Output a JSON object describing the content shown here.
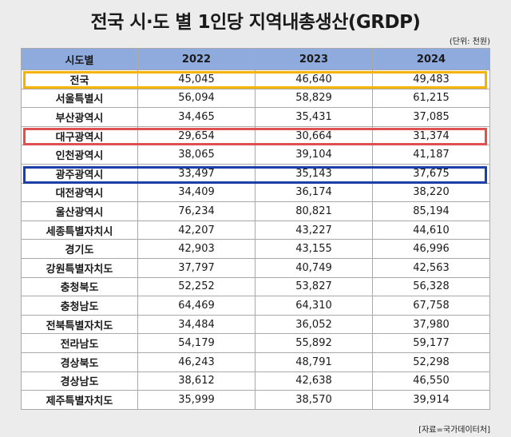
{
  "title": "전국 시·도 별 1인당 지역내총생산(GRDP)",
  "unit_note": "(단위: 천원)",
  "source_note": "[자료=국가데이터처]",
  "highlight_colors": {
    "orange": "#f5b300",
    "red": "#e05050",
    "blue": "#1f3fa8"
  },
  "chart_data": {
    "type": "table",
    "columns": [
      "시도별",
      "2022",
      "2023",
      "2024"
    ],
    "rows": [
      {
        "region": "전국",
        "values": [
          "45,045",
          "46,640",
          "49,483"
        ]
      },
      {
        "region": "서울특별시",
        "values": [
          "56,094",
          "58,829",
          "61,215"
        ]
      },
      {
        "region": "부산광역시",
        "values": [
          "34,465",
          "35,431",
          "37,085"
        ]
      },
      {
        "region": "대구광역시",
        "values": [
          "29,654",
          "30,664",
          "31,374"
        ]
      },
      {
        "region": "인천광역시",
        "values": [
          "38,065",
          "39,104",
          "41,187"
        ]
      },
      {
        "region": "광주광역시",
        "values": [
          "33,497",
          "35,143",
          "37,675"
        ]
      },
      {
        "region": "대전광역시",
        "values": [
          "34,409",
          "36,174",
          "38,220"
        ]
      },
      {
        "region": "울산광역시",
        "values": [
          "76,234",
          "80,821",
          "85,194"
        ]
      },
      {
        "region": "세종특별자치시",
        "values": [
          "42,207",
          "43,227",
          "44,610"
        ]
      },
      {
        "region": "경기도",
        "values": [
          "42,903",
          "43,155",
          "46,996"
        ]
      },
      {
        "region": "강원특별자치도",
        "values": [
          "37,797",
          "40,749",
          "42,563"
        ]
      },
      {
        "region": "충청북도",
        "values": [
          "52,252",
          "53,827",
          "56,328"
        ]
      },
      {
        "region": "충청남도",
        "values": [
          "64,469",
          "64,310",
          "67,758"
        ]
      },
      {
        "region": "전북특별자치도",
        "values": [
          "34,484",
          "36,052",
          "37,980"
        ]
      },
      {
        "region": "전라남도",
        "values": [
          "54,179",
          "55,892",
          "59,177"
        ]
      },
      {
        "region": "경상북도",
        "values": [
          "46,243",
          "48,791",
          "52,298"
        ]
      },
      {
        "region": "경상남도",
        "values": [
          "38,612",
          "42,638",
          "46,550"
        ]
      },
      {
        "region": "제주특별자치도",
        "values": [
          "35,999",
          "38,570",
          "39,914"
        ]
      }
    ]
  }
}
